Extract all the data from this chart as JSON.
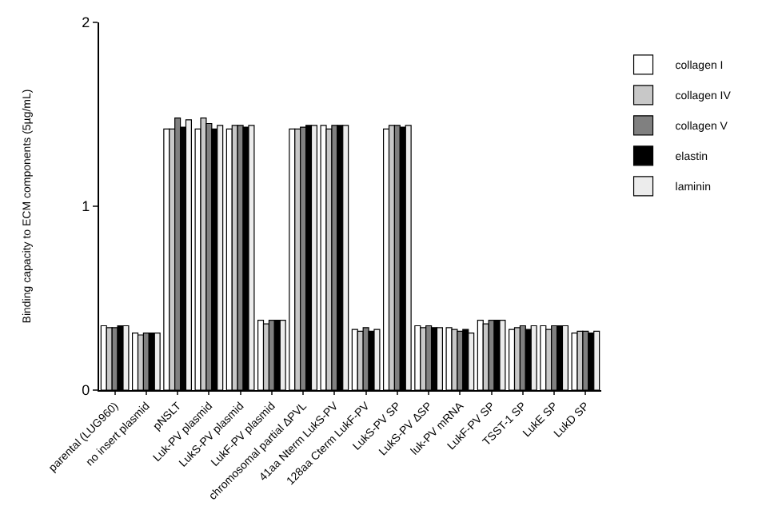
{
  "chart_data": {
    "type": "bar",
    "ylabel": "Binding capacity to ECM components (5µg/mL)",
    "categories": [
      "parental (LUG960)",
      "no insert plasmid",
      "pNSLT",
      "Luk-PV plasmid",
      "LukS-PV plasmid",
      "LukF-PV plasmid",
      "chromosomal partial ΔPVL",
      "41aa Nterm LukS-PV",
      "128aa Cterm LukF-PV",
      "LukS-PV SP",
      "LukS-PV ΔSP",
      "luk-PV mRNA",
      "LukF-PV SP",
      "TSST-1 SP",
      "LukE SP",
      "LukD SP"
    ],
    "series": [
      {
        "name": "collagen I",
        "color": "#ffffff",
        "values": [
          0.35,
          0.31,
          1.42,
          1.42,
          1.42,
          0.38,
          1.42,
          1.44,
          0.33,
          1.42,
          0.35,
          0.34,
          0.38,
          0.33,
          0.35,
          0.31
        ]
      },
      {
        "name": "collagen IV",
        "color": "#c8c8c8",
        "values": [
          0.34,
          0.3,
          1.42,
          1.48,
          1.44,
          0.36,
          1.42,
          1.42,
          0.32,
          1.44,
          0.34,
          0.33,
          0.36,
          0.34,
          0.33,
          0.32
        ]
      },
      {
        "name": "collagen V",
        "color": "#808080",
        "values": [
          0.34,
          0.31,
          1.48,
          1.45,
          1.44,
          0.38,
          1.43,
          1.44,
          0.34,
          1.44,
          0.35,
          0.32,
          0.38,
          0.35,
          0.35,
          0.32
        ]
      },
      {
        "name": "elastin",
        "color": "#000000",
        "values": [
          0.35,
          0.31,
          1.43,
          1.42,
          1.43,
          0.38,
          1.44,
          1.44,
          0.32,
          1.43,
          0.34,
          0.33,
          0.38,
          0.33,
          0.35,
          0.31
        ]
      },
      {
        "name": "laminin",
        "color": "#ececec",
        "values": [
          0.35,
          0.31,
          1.47,
          1.44,
          1.44,
          0.38,
          1.44,
          1.44,
          0.33,
          1.44,
          0.34,
          0.31,
          0.38,
          0.35,
          0.35,
          0.32
        ]
      }
    ],
    "ylim": [
      0,
      2
    ],
    "yticks": [
      0,
      1,
      2
    ],
    "grid": false,
    "legend": "right"
  }
}
